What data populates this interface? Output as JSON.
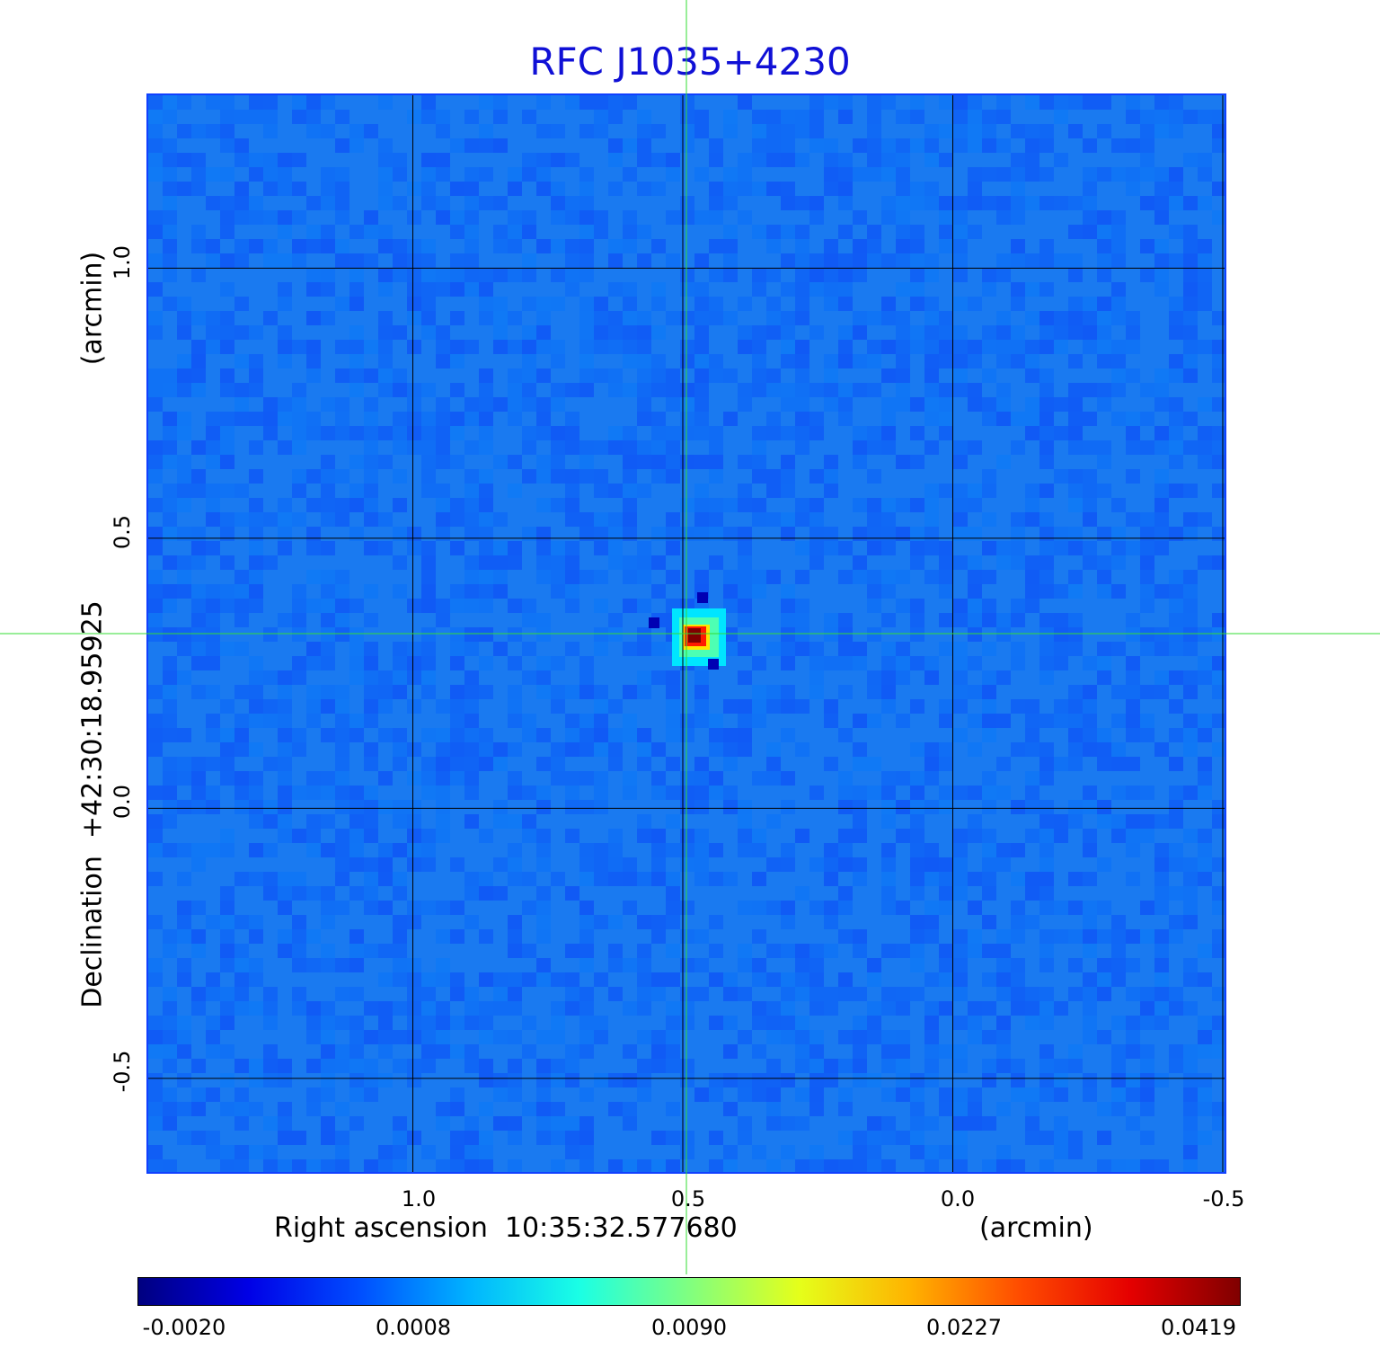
{
  "chart_data": {
    "type": "heatmap",
    "title": "RFC J1035+4230",
    "xlabel": "Right ascension  10:35:32.577680",
    "xunit": "(arcmin)",
    "ylabel": "Declination  +42:30:18.95925",
    "yunit": "(arcmin)",
    "x_ticks": [
      "1.0",
      "0.5",
      "0.0",
      "-0.5"
    ],
    "x_tick_values": [
      1.0,
      0.5,
      0.0,
      -0.5
    ],
    "xlim": [
      1.49,
      -0.51
    ],
    "y_ticks": [
      "1.0",
      "0.5",
      "0.0",
      "-0.5"
    ],
    "y_tick_values": [
      1.0,
      0.5,
      0.0,
      -0.5
    ],
    "ylim": [
      -0.68,
      1.32
    ],
    "grid": true,
    "crosshair": {
      "x": 0.49,
      "y": 0.32
    },
    "source_peak": {
      "x": 0.49,
      "y": 0.32,
      "value": 0.0419
    },
    "colorbar": {
      "colormap": "jet",
      "ticks": [
        "-0.0020",
        "0.0008",
        "0.0090",
        "0.0227",
        "0.0419"
      ],
      "placement": "bottom"
    },
    "background_level": 0.0002
  },
  "colors": {
    "title": "#1010d6",
    "frame": "#1040ff",
    "grid": "#000000",
    "crosshair": "#33dd33",
    "background_map": "#1a7af0"
  }
}
